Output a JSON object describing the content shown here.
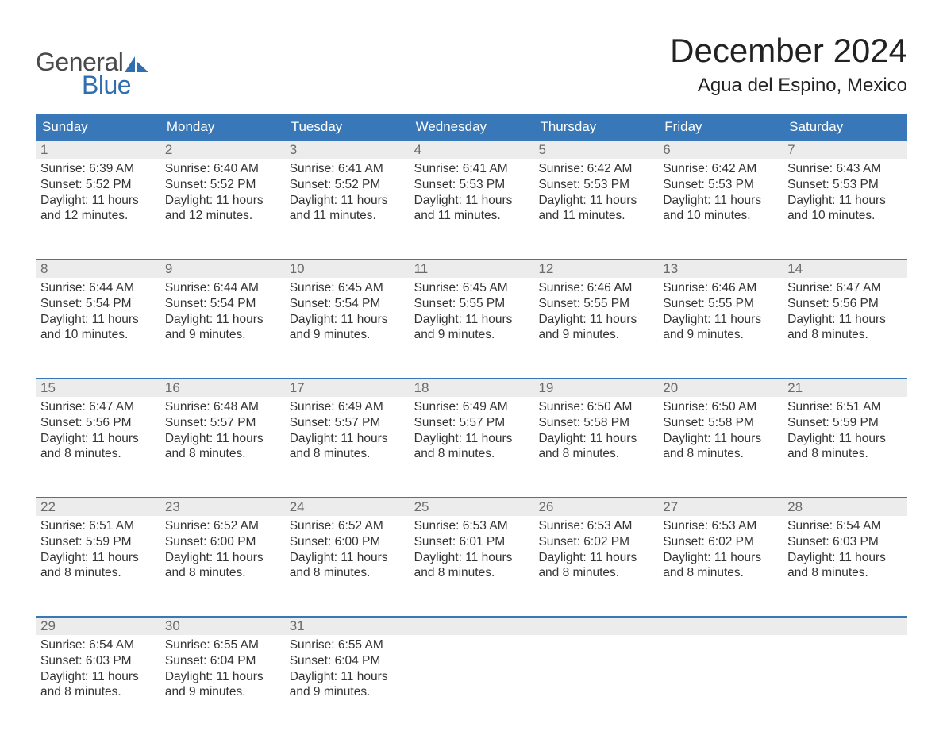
{
  "brand": {
    "general": "General",
    "blue": "Blue",
    "accent_color": "#2f6eb0"
  },
  "header": {
    "month_title": "December 2024",
    "location": "Agua del Espino, Mexico"
  },
  "colors": {
    "header_bg": "#3978b8",
    "header_text": "#ffffff",
    "daynum_bg": "#ececec",
    "daynum_text": "#6b6b6b",
    "body_text": "#333333",
    "rule": "#3978b8",
    "page_bg": "#ffffff"
  },
  "weekdays": [
    "Sunday",
    "Monday",
    "Tuesday",
    "Wednesday",
    "Thursday",
    "Friday",
    "Saturday"
  ],
  "weeks": [
    [
      {
        "n": "1",
        "sunrise": "Sunrise: 6:39 AM",
        "sunset": "Sunset: 5:52 PM",
        "daylight": "Daylight: 11 hours and 12 minutes."
      },
      {
        "n": "2",
        "sunrise": "Sunrise: 6:40 AM",
        "sunset": "Sunset: 5:52 PM",
        "daylight": "Daylight: 11 hours and 12 minutes."
      },
      {
        "n": "3",
        "sunrise": "Sunrise: 6:41 AM",
        "sunset": "Sunset: 5:52 PM",
        "daylight": "Daylight: 11 hours and 11 minutes."
      },
      {
        "n": "4",
        "sunrise": "Sunrise: 6:41 AM",
        "sunset": "Sunset: 5:53 PM",
        "daylight": "Daylight: 11 hours and 11 minutes."
      },
      {
        "n": "5",
        "sunrise": "Sunrise: 6:42 AM",
        "sunset": "Sunset: 5:53 PM",
        "daylight": "Daylight: 11 hours and 11 minutes."
      },
      {
        "n": "6",
        "sunrise": "Sunrise: 6:42 AM",
        "sunset": "Sunset: 5:53 PM",
        "daylight": "Daylight: 11 hours and 10 minutes."
      },
      {
        "n": "7",
        "sunrise": "Sunrise: 6:43 AM",
        "sunset": "Sunset: 5:53 PM",
        "daylight": "Daylight: 11 hours and 10 minutes."
      }
    ],
    [
      {
        "n": "8",
        "sunrise": "Sunrise: 6:44 AM",
        "sunset": "Sunset: 5:54 PM",
        "daylight": "Daylight: 11 hours and 10 minutes."
      },
      {
        "n": "9",
        "sunrise": "Sunrise: 6:44 AM",
        "sunset": "Sunset: 5:54 PM",
        "daylight": "Daylight: 11 hours and 9 minutes."
      },
      {
        "n": "10",
        "sunrise": "Sunrise: 6:45 AM",
        "sunset": "Sunset: 5:54 PM",
        "daylight": "Daylight: 11 hours and 9 minutes."
      },
      {
        "n": "11",
        "sunrise": "Sunrise: 6:45 AM",
        "sunset": "Sunset: 5:55 PM",
        "daylight": "Daylight: 11 hours and 9 minutes."
      },
      {
        "n": "12",
        "sunrise": "Sunrise: 6:46 AM",
        "sunset": "Sunset: 5:55 PM",
        "daylight": "Daylight: 11 hours and 9 minutes."
      },
      {
        "n": "13",
        "sunrise": "Sunrise: 6:46 AM",
        "sunset": "Sunset: 5:55 PM",
        "daylight": "Daylight: 11 hours and 9 minutes."
      },
      {
        "n": "14",
        "sunrise": "Sunrise: 6:47 AM",
        "sunset": "Sunset: 5:56 PM",
        "daylight": "Daylight: 11 hours and 8 minutes."
      }
    ],
    [
      {
        "n": "15",
        "sunrise": "Sunrise: 6:47 AM",
        "sunset": "Sunset: 5:56 PM",
        "daylight": "Daylight: 11 hours and 8 minutes."
      },
      {
        "n": "16",
        "sunrise": "Sunrise: 6:48 AM",
        "sunset": "Sunset: 5:57 PM",
        "daylight": "Daylight: 11 hours and 8 minutes."
      },
      {
        "n": "17",
        "sunrise": "Sunrise: 6:49 AM",
        "sunset": "Sunset: 5:57 PM",
        "daylight": "Daylight: 11 hours and 8 minutes."
      },
      {
        "n": "18",
        "sunrise": "Sunrise: 6:49 AM",
        "sunset": "Sunset: 5:57 PM",
        "daylight": "Daylight: 11 hours and 8 minutes."
      },
      {
        "n": "19",
        "sunrise": "Sunrise: 6:50 AM",
        "sunset": "Sunset: 5:58 PM",
        "daylight": "Daylight: 11 hours and 8 minutes."
      },
      {
        "n": "20",
        "sunrise": "Sunrise: 6:50 AM",
        "sunset": "Sunset: 5:58 PM",
        "daylight": "Daylight: 11 hours and 8 minutes."
      },
      {
        "n": "21",
        "sunrise": "Sunrise: 6:51 AM",
        "sunset": "Sunset: 5:59 PM",
        "daylight": "Daylight: 11 hours and 8 minutes."
      }
    ],
    [
      {
        "n": "22",
        "sunrise": "Sunrise: 6:51 AM",
        "sunset": "Sunset: 5:59 PM",
        "daylight": "Daylight: 11 hours and 8 minutes."
      },
      {
        "n": "23",
        "sunrise": "Sunrise: 6:52 AM",
        "sunset": "Sunset: 6:00 PM",
        "daylight": "Daylight: 11 hours and 8 minutes."
      },
      {
        "n": "24",
        "sunrise": "Sunrise: 6:52 AM",
        "sunset": "Sunset: 6:00 PM",
        "daylight": "Daylight: 11 hours and 8 minutes."
      },
      {
        "n": "25",
        "sunrise": "Sunrise: 6:53 AM",
        "sunset": "Sunset: 6:01 PM",
        "daylight": "Daylight: 11 hours and 8 minutes."
      },
      {
        "n": "26",
        "sunrise": "Sunrise: 6:53 AM",
        "sunset": "Sunset: 6:02 PM",
        "daylight": "Daylight: 11 hours and 8 minutes."
      },
      {
        "n": "27",
        "sunrise": "Sunrise: 6:53 AM",
        "sunset": "Sunset: 6:02 PM",
        "daylight": "Daylight: 11 hours and 8 minutes."
      },
      {
        "n": "28",
        "sunrise": "Sunrise: 6:54 AM",
        "sunset": "Sunset: 6:03 PM",
        "daylight": "Daylight: 11 hours and 8 minutes."
      }
    ],
    [
      {
        "n": "29",
        "sunrise": "Sunrise: 6:54 AM",
        "sunset": "Sunset: 6:03 PM",
        "daylight": "Daylight: 11 hours and 8 minutes."
      },
      {
        "n": "30",
        "sunrise": "Sunrise: 6:55 AM",
        "sunset": "Sunset: 6:04 PM",
        "daylight": "Daylight: 11 hours and 9 minutes."
      },
      {
        "n": "31",
        "sunrise": "Sunrise: 6:55 AM",
        "sunset": "Sunset: 6:04 PM",
        "daylight": "Daylight: 11 hours and 9 minutes."
      },
      null,
      null,
      null,
      null
    ]
  ]
}
